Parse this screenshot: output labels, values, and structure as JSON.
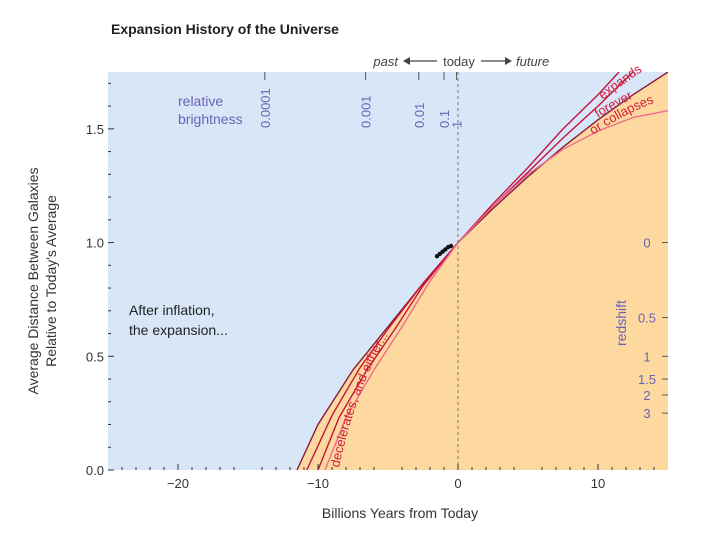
{
  "chart_data": {
    "type": "line",
    "title": "Expansion History of the Universe",
    "xlabel": "Billions Years from Today",
    "ylabel_line1": "Average Distance Between Galaxies",
    "ylabel_line2": "Relative to Today's Average",
    "xlim": [
      -25,
      15
    ],
    "ylim": [
      0,
      1.75
    ],
    "x_ticks": [
      -20,
      -10,
      0,
      10
    ],
    "x_tick_labels": [
      "−20",
      "−10",
      "0",
      "10"
    ],
    "y_ticks": [
      0.0,
      0.5,
      1.0,
      1.5
    ],
    "y_tick_labels": [
      "0.0",
      "0.5",
      "1.0",
      "1.5"
    ],
    "series": [
      {
        "points": [
          [
            -11.5,
            0.0
          ],
          [
            -10.0,
            0.2
          ],
          [
            -7.5,
            0.44
          ],
          [
            -5.0,
            0.63
          ],
          [
            -2.5,
            0.82
          ],
          [
            0,
            1.0
          ],
          [
            2.5,
            1.15
          ],
          [
            5.0,
            1.29
          ],
          [
            7.5,
            1.42
          ],
          [
            10.0,
            1.54
          ],
          [
            12.5,
            1.65
          ],
          [
            15.0,
            1.75
          ]
        ]
      },
      {
        "points": [
          [
            -10.8,
            0.0
          ],
          [
            -9.0,
            0.24
          ],
          [
            -7.0,
            0.45
          ],
          [
            -5.0,
            0.62
          ],
          [
            -2.5,
            0.82
          ],
          [
            0,
            1.0
          ],
          [
            2.5,
            1.16
          ],
          [
            5.0,
            1.31
          ],
          [
            7.5,
            1.46
          ],
          [
            10.0,
            1.6
          ],
          [
            12.5,
            1.75
          ]
        ]
      },
      {
        "points": [
          [
            -10.0,
            0.0
          ],
          [
            -8.5,
            0.23
          ],
          [
            -6.5,
            0.44
          ],
          [
            -4.5,
            0.62
          ],
          [
            -2.5,
            0.81
          ],
          [
            0,
            1.0
          ],
          [
            2.5,
            1.17
          ],
          [
            5.0,
            1.33
          ],
          [
            7.5,
            1.5
          ],
          [
            10.0,
            1.65
          ],
          [
            11.5,
            1.75
          ]
        ]
      },
      {
        "points": [
          [
            -9.5,
            0.0
          ],
          [
            -8.0,
            0.23
          ],
          [
            -6.0,
            0.44
          ],
          [
            -4.0,
            0.63
          ],
          [
            -2.0,
            0.83
          ],
          [
            0,
            1.0
          ],
          [
            2.5,
            1.16
          ],
          [
            5.0,
            1.3
          ],
          [
            7.5,
            1.41
          ],
          [
            10.0,
            1.49
          ],
          [
            12.5,
            1.55
          ],
          [
            15.0,
            1.58
          ]
        ]
      }
    ],
    "observations": [
      [
        -1.5,
        0.94
      ],
      [
        -1.3,
        0.95
      ],
      [
        -1.1,
        0.96
      ],
      [
        -0.9,
        0.97
      ],
      [
        -0.7,
        0.98
      ],
      [
        -0.5,
        0.985
      ]
    ],
    "today_x": 0,
    "grid": false
  },
  "annotations": {
    "past": "past",
    "today": "today",
    "future": "future",
    "relative_brightness_1": "relative",
    "relative_brightness_2": "brightness",
    "brightness_ticks": [
      {
        "label": "0.0001",
        "x": -13.8
      },
      {
        "label": "0.001",
        "x": -6.6
      },
      {
        "label": "0.01",
        "x": -2.8
      },
      {
        "label": "0.1",
        "x": -1.0
      },
      {
        "label": "1",
        "x": -0.1
      }
    ],
    "redshift_title": "redshift",
    "redshift_ticks": [
      {
        "label": "0",
        "y": 1.0
      },
      {
        "label": "0.5",
        "y": 0.67
      },
      {
        "label": "1",
        "y": 0.5
      },
      {
        "label": "1.5",
        "y": 0.4
      },
      {
        "label": "2",
        "y": 0.33
      },
      {
        "label": "3",
        "y": 0.25
      }
    ],
    "after_inflation_1": "After inflation,",
    "after_inflation_2": "the expansion...",
    "decelerates_text": "decelerates, and either...",
    "expands_text": "expands",
    "forever_text": "forever",
    "collapses_text": "or collapses"
  },
  "colors": {
    "sky": "#d8e7f7",
    "fill": "#fdd9a0",
    "curve_dark": "#8b1a3a",
    "curve_mid": "#c4133c",
    "curve_light": "#ef6b8a",
    "label_purple": "#6b63b5",
    "label_red": "#d21d3c",
    "axis_text": "#333333"
  }
}
